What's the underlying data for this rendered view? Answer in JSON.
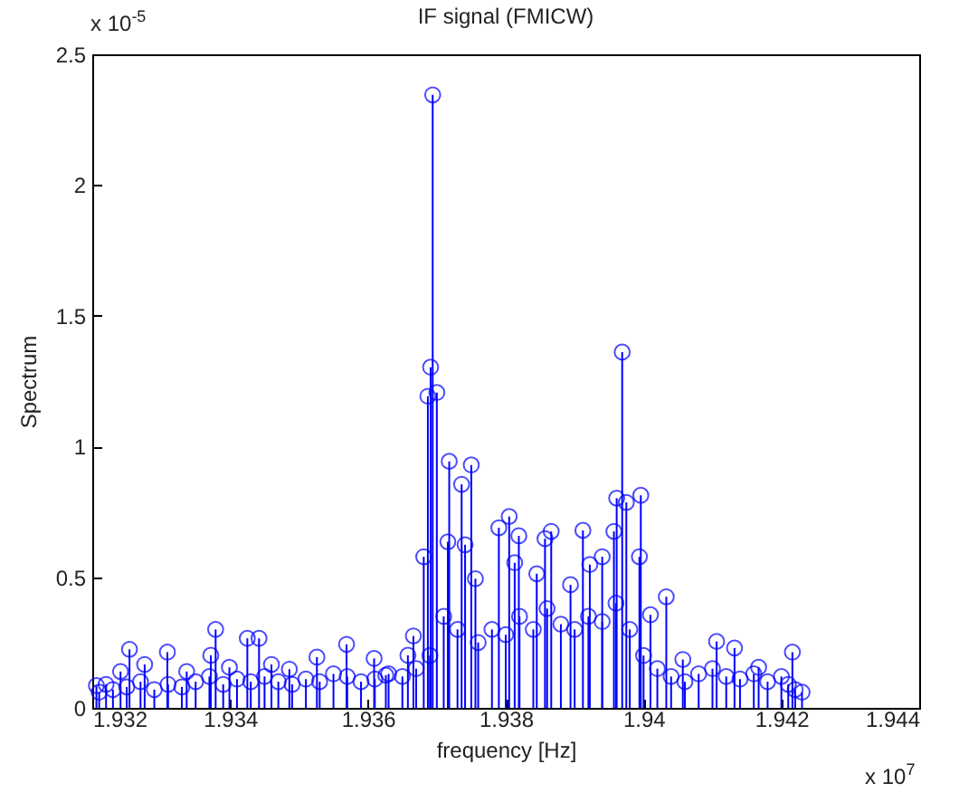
{
  "chart_data": {
    "type": "lollipop",
    "title": "IF signal (FMICW)",
    "xlabel": "frequency [Hz]",
    "ylabel": "Spectrum",
    "annotations": [
      "x 10$^{-5}$",
      "x 10$^{7}$"
    ],
    "color": "#0000ff",
    "marker": "circle",
    "grid": false,
    "xlim": [
      1.932,
      1.944
    ],
    "xticks": [
      1.932,
      1.934,
      1.936,
      1.938,
      1.94,
      1.942,
      1.944
    ],
    "ylim": [
      0,
      2.5
    ],
    "yticks": [
      0,
      0.5,
      1,
      1.5,
      2,
      2.5
    ],
    "x": [
      1.93694,
      1.93691,
      1.93687,
      1.937,
      1.93681,
      1.93718,
      1.93716,
      1.93736,
      1.9375,
      1.93741,
      1.93756,
      1.9379,
      1.93805,
      1.93819,
      1.93813,
      1.93845,
      1.93857,
      1.93866,
      1.93912,
      1.93922,
      1.9394,
      1.93894,
      1.93961,
      1.93969,
      1.93975,
      1.93996,
      1.93994,
      1.93957,
      1.9401,
      1.94033,
      1.94057,
      1.94106,
      1.94132,
      1.94216,
      1.9422,
      1.94167,
      1.93254,
      1.93309,
      1.93379,
      1.93372,
      1.93425,
      1.93442,
      1.93526,
      1.93569,
      1.93666,
      1.93658,
      1.93206,
      1.93241,
      1.93276,
      1.93337,
      1.93399,
      1.9346,
      1.93486,
      1.93609,
      1.93626,
      1.9321,
      1.9322,
      1.9323,
      1.9325,
      1.9327,
      1.9329,
      1.9331,
      1.9333,
      1.9335,
      1.9337,
      1.9339,
      1.9341,
      1.9343,
      1.9345,
      1.9347,
      1.9349,
      1.9351,
      1.9353,
      1.9355,
      1.9357,
      1.9359,
      1.9361,
      1.9363,
      1.9365,
      1.9367,
      1.9369,
      1.9371,
      1.9373,
      1.9376,
      1.9378,
      1.938,
      1.9382,
      1.9384,
      1.9386,
      1.9388,
      1.939,
      1.9392,
      1.9394,
      1.9396,
      1.9398,
      1.94,
      1.9402,
      1.9404,
      1.9406,
      1.9408,
      1.941,
      1.9412,
      1.9414,
      1.9416,
      1.9418,
      1.942,
      1.9421,
      1.9423
    ],
    "values": [
      2.345,
      1.303,
      1.192,
      1.206,
      0.578,
      0.943,
      0.635,
      0.855,
      0.929,
      0.624,
      0.494,
      0.689,
      0.732,
      0.658,
      0.555,
      0.513,
      0.647,
      0.675,
      0.679,
      0.548,
      0.578,
      0.471,
      0.802,
      1.361,
      0.786,
      0.813,
      0.578,
      0.675,
      0.356,
      0.425,
      0.185,
      0.254,
      0.229,
      0.213,
      0.07,
      0.155,
      0.224,
      0.213,
      0.3,
      0.201,
      0.266,
      0.266,
      0.194,
      0.243,
      0.275,
      0.201,
      0.085,
      0.139,
      0.166,
      0.139,
      0.155,
      0.166,
      0.148,
      0.189,
      0.125,
      0.06,
      0.09,
      0.07,
      0.08,
      0.1,
      0.07,
      0.09,
      0.08,
      0.1,
      0.12,
      0.09,
      0.11,
      0.1,
      0.12,
      0.1,
      0.09,
      0.11,
      0.1,
      0.13,
      0.12,
      0.1,
      0.11,
      0.13,
      0.12,
      0.15,
      0.2,
      0.35,
      0.3,
      0.25,
      0.3,
      0.28,
      0.35,
      0.3,
      0.38,
      0.32,
      0.3,
      0.35,
      0.33,
      0.4,
      0.3,
      0.2,
      0.15,
      0.12,
      0.1,
      0.13,
      0.15,
      0.12,
      0.11,
      0.13,
      0.1,
      0.12,
      0.09,
      0.06
    ]
  }
}
